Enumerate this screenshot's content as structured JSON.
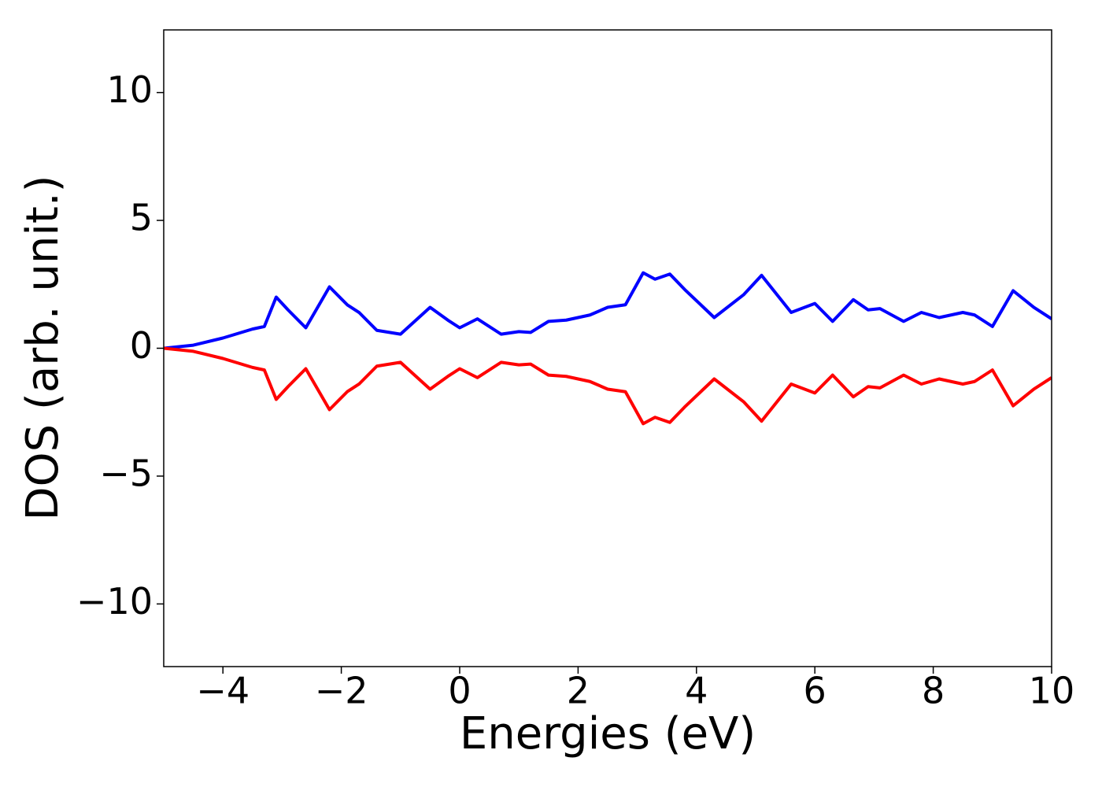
{
  "chart_data": {
    "type": "line",
    "xlabel": "Energies (eV)",
    "ylabel": "DOS (arb. unit.)",
    "x": [
      -5,
      -4.5,
      -4,
      -3.5,
      -3.3,
      -3.1,
      -2.9,
      -2.6,
      -2.2,
      -1.9,
      -1.7,
      -1.4,
      -1.0,
      -0.5,
      -0.2,
      0,
      0.3,
      0.7,
      1.0,
      1.2,
      1.5,
      1.8,
      2.2,
      2.5,
      2.8,
      3.1,
      3.3,
      3.55,
      3.8,
      4.3,
      4.8,
      5.1,
      5.6,
      6.0,
      6.3,
      6.65,
      6.9,
      7.1,
      7.5,
      7.8,
      8.1,
      8.5,
      8.7,
      9.0,
      9.35,
      9.7,
      10
    ],
    "series": [
      {
        "color": "#0000ff",
        "values": [
          0,
          0.12,
          0.4,
          0.75,
          0.85,
          2.0,
          1.5,
          0.8,
          2.4,
          1.7,
          1.4,
          0.7,
          0.55,
          1.6,
          1.1,
          0.8,
          1.15,
          0.55,
          0.65,
          0.62,
          1.05,
          1.1,
          1.3,
          1.6,
          1.7,
          2.95,
          2.7,
          2.9,
          2.3,
          1.2,
          2.1,
          2.85,
          1.4,
          1.75,
          1.05,
          1.9,
          1.5,
          1.55,
          1.05,
          1.4,
          1.2,
          1.4,
          1.3,
          0.85,
          2.25,
          1.6,
          1.15
        ]
      },
      {
        "color": "#ff0000",
        "values": [
          0,
          -0.12,
          -0.4,
          -0.75,
          -0.85,
          -2.0,
          -1.5,
          -0.8,
          -2.4,
          -1.7,
          -1.4,
          -0.7,
          -0.55,
          -1.6,
          -1.1,
          -0.8,
          -1.15,
          -0.55,
          -0.65,
          -0.62,
          -1.05,
          -1.1,
          -1.3,
          -1.6,
          -1.7,
          -2.95,
          -2.7,
          -2.9,
          -2.3,
          -1.2,
          -2.1,
          -2.85,
          -1.4,
          -1.75,
          -1.05,
          -1.9,
          -1.5,
          -1.55,
          -1.05,
          -1.4,
          -1.2,
          -1.4,
          -1.3,
          -0.85,
          -2.25,
          -1.6,
          -1.15
        ]
      }
    ],
    "xlim": [
      -5,
      10
    ],
    "xticks": [
      {
        "value": -4,
        "label": "−4"
      },
      {
        "value": -2,
        "label": "−2"
      },
      0,
      2,
      4,
      6,
      8,
      10
    ],
    "ylim": [
      -12.45,
      12.45
    ],
    "yticks": [
      {
        "value": -10,
        "label": "−10"
      },
      {
        "value": -5,
        "label": "−5"
      },
      0,
      5,
      10
    ],
    "grid": false
  }
}
